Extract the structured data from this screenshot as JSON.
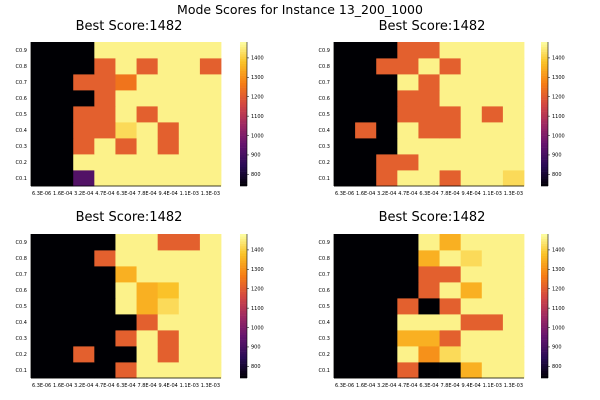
{
  "figure_title": "Mode Scores for Instance 13_200_1000",
  "chart_data": [
    {
      "type": "heatmap",
      "title": "Best Score:1482",
      "x_ticks": [
        "6.3E-06",
        "1.6E-04",
        "3.2E-04",
        "4.7E-04",
        "6.3E-04",
        "7.8E-04",
        "9.4E-04",
        "1.1E-03",
        "1.3E-03"
      ],
      "y_ticks": [
        "C0.1",
        "C0.2",
        "C0.3",
        "C0.4",
        "C0.5",
        "C0.6",
        "C0.7",
        "C0.8",
        "C0.9"
      ],
      "colorbar_ticks": [
        800,
        900,
        1000,
        1100,
        1200,
        1300,
        1400
      ],
      "zlim": [
        740,
        1482
      ],
      "values_rows_bottom_to_top": [
        [
          740,
          740,
          920,
          1460,
          1460,
          1460,
          1460,
          1460,
          1460
        ],
        [
          740,
          740,
          1460,
          1460,
          1460,
          1460,
          1460,
          1460,
          1460
        ],
        [
          740,
          740,
          1210,
          1460,
          1210,
          1460,
          1210,
          1460,
          1460
        ],
        [
          740,
          740,
          1210,
          1210,
          1420,
          1460,
          1210,
          1460,
          1460
        ],
        [
          740,
          740,
          1210,
          1210,
          1460,
          1210,
          1460,
          1460,
          1460
        ],
        [
          740,
          740,
          740,
          1210,
          1460,
          1460,
          1460,
          1460,
          1460
        ],
        [
          740,
          740,
          1210,
          1210,
          1250,
          1460,
          1460,
          1460,
          1460
        ],
        [
          740,
          740,
          740,
          1210,
          1460,
          1210,
          1460,
          1460,
          1210
        ],
        [
          740,
          740,
          740,
          1460,
          1460,
          1460,
          1460,
          1460,
          1460
        ]
      ]
    },
    {
      "type": "heatmap",
      "title": "Best Score:1482",
      "x_ticks": [
        "6.3E-06",
        "1.6E-04",
        "3.2E-04",
        "4.7E-04",
        "6.3E-04",
        "7.8E-04",
        "9.4E-04",
        "1.1E-03",
        "1.3E-03"
      ],
      "y_ticks": [
        "C0.1",
        "C0.2",
        "C0.3",
        "C0.4",
        "C0.5",
        "C0.6",
        "C0.7",
        "C0.8",
        "C0.9"
      ],
      "colorbar_ticks": [
        800,
        900,
        1000,
        1100,
        1200,
        1300,
        1400
      ],
      "zlim": [
        740,
        1482
      ],
      "values_rows_bottom_to_top": [
        [
          740,
          740,
          1210,
          1460,
          1460,
          1210,
          1460,
          1460,
          1420
        ],
        [
          740,
          740,
          1210,
          1210,
          1460,
          1460,
          1460,
          1460,
          1460
        ],
        [
          740,
          740,
          740,
          1460,
          1460,
          1460,
          1460,
          1460,
          1460
        ],
        [
          740,
          1210,
          740,
          1460,
          1210,
          1210,
          1460,
          1460,
          1460
        ],
        [
          740,
          740,
          740,
          1210,
          1210,
          1210,
          1460,
          1210,
          1460
        ],
        [
          740,
          740,
          740,
          1210,
          1210,
          1460,
          1460,
          1460,
          1460
        ],
        [
          740,
          740,
          740,
          1460,
          1210,
          1460,
          1460,
          1460,
          1460
        ],
        [
          740,
          740,
          1210,
          1210,
          1460,
          1210,
          1460,
          1460,
          1460
        ],
        [
          740,
          740,
          740,
          1210,
          1210,
          1460,
          1460,
          1460,
          1460
        ]
      ]
    },
    {
      "type": "heatmap",
      "title": "Best Score:1482",
      "x_ticks": [
        "6.3E-06",
        "1.6E-04",
        "3.2E-04",
        "4.7E-04",
        "6.3E-04",
        "7.8E-04",
        "9.4E-04",
        "1.1E-03",
        "1.3E-03"
      ],
      "y_ticks": [
        "C0.1",
        "C0.2",
        "C0.3",
        "C0.4",
        "C0.5",
        "C0.6",
        "C0.7",
        "C0.8",
        "C0.9"
      ],
      "colorbar_ticks": [
        800,
        900,
        1000,
        1100,
        1200,
        1300,
        1400
      ],
      "zlim": [
        740,
        1482
      ],
      "values_rows_bottom_to_top": [
        [
          740,
          740,
          740,
          740,
          1210,
          1460,
          1460,
          1460,
          1460
        ],
        [
          740,
          740,
          1210,
          740,
          740,
          1460,
          1210,
          1460,
          1460
        ],
        [
          740,
          740,
          740,
          740,
          1210,
          1460,
          1210,
          1460,
          1460
        ],
        [
          740,
          740,
          740,
          740,
          740,
          1210,
          1460,
          1460,
          1460
        ],
        [
          740,
          740,
          740,
          740,
          1460,
          1350,
          1420,
          1460,
          1460
        ],
        [
          740,
          740,
          740,
          740,
          1460,
          1350,
          1380,
          1460,
          1460
        ],
        [
          740,
          740,
          740,
          740,
          1350,
          1460,
          1460,
          1460,
          1460
        ],
        [
          740,
          740,
          740,
          1210,
          1460,
          1460,
          1460,
          1460,
          1460
        ],
        [
          740,
          740,
          740,
          740,
          1460,
          1460,
          1210,
          1210,
          1460
        ]
      ]
    },
    {
      "type": "heatmap",
      "title": "Best Score:1482",
      "x_ticks": [
        "6.3E-06",
        "1.6E-04",
        "3.2E-04",
        "4.7E-04",
        "6.3E-04",
        "7.8E-04",
        "9.4E-04",
        "1.1E-03",
        "1.3E-03"
      ],
      "y_ticks": [
        "C0.1",
        "C0.2",
        "C0.3",
        "C0.4",
        "C0.5",
        "C0.6",
        "C0.7",
        "C0.8",
        "C0.9"
      ],
      "colorbar_ticks": [
        800,
        900,
        1000,
        1100,
        1200,
        1300,
        1400
      ],
      "zlim": [
        740,
        1482
      ],
      "values_rows_bottom_to_top": [
        [
          740,
          740,
          740,
          1210,
          740,
          740,
          1350,
          1460,
          1460
        ],
        [
          740,
          740,
          740,
          1460,
          1300,
          1420,
          1460,
          1460,
          1460
        ],
        [
          740,
          740,
          740,
          1350,
          1350,
          1210,
          1460,
          1460,
          1460
        ],
        [
          740,
          740,
          740,
          1460,
          1460,
          1460,
          1210,
          1210,
          1460
        ],
        [
          740,
          740,
          740,
          1210,
          740,
          1210,
          1460,
          1460,
          1460
        ],
        [
          740,
          740,
          740,
          740,
          1210,
          1460,
          1350,
          1460,
          1460
        ],
        [
          740,
          740,
          740,
          740,
          1210,
          1210,
          1460,
          1460,
          1460
        ],
        [
          740,
          740,
          740,
          740,
          1350,
          1460,
          1420,
          1460,
          1460
        ],
        [
          740,
          740,
          740,
          740,
          1460,
          1350,
          1460,
          1460,
          1460
        ]
      ]
    }
  ]
}
